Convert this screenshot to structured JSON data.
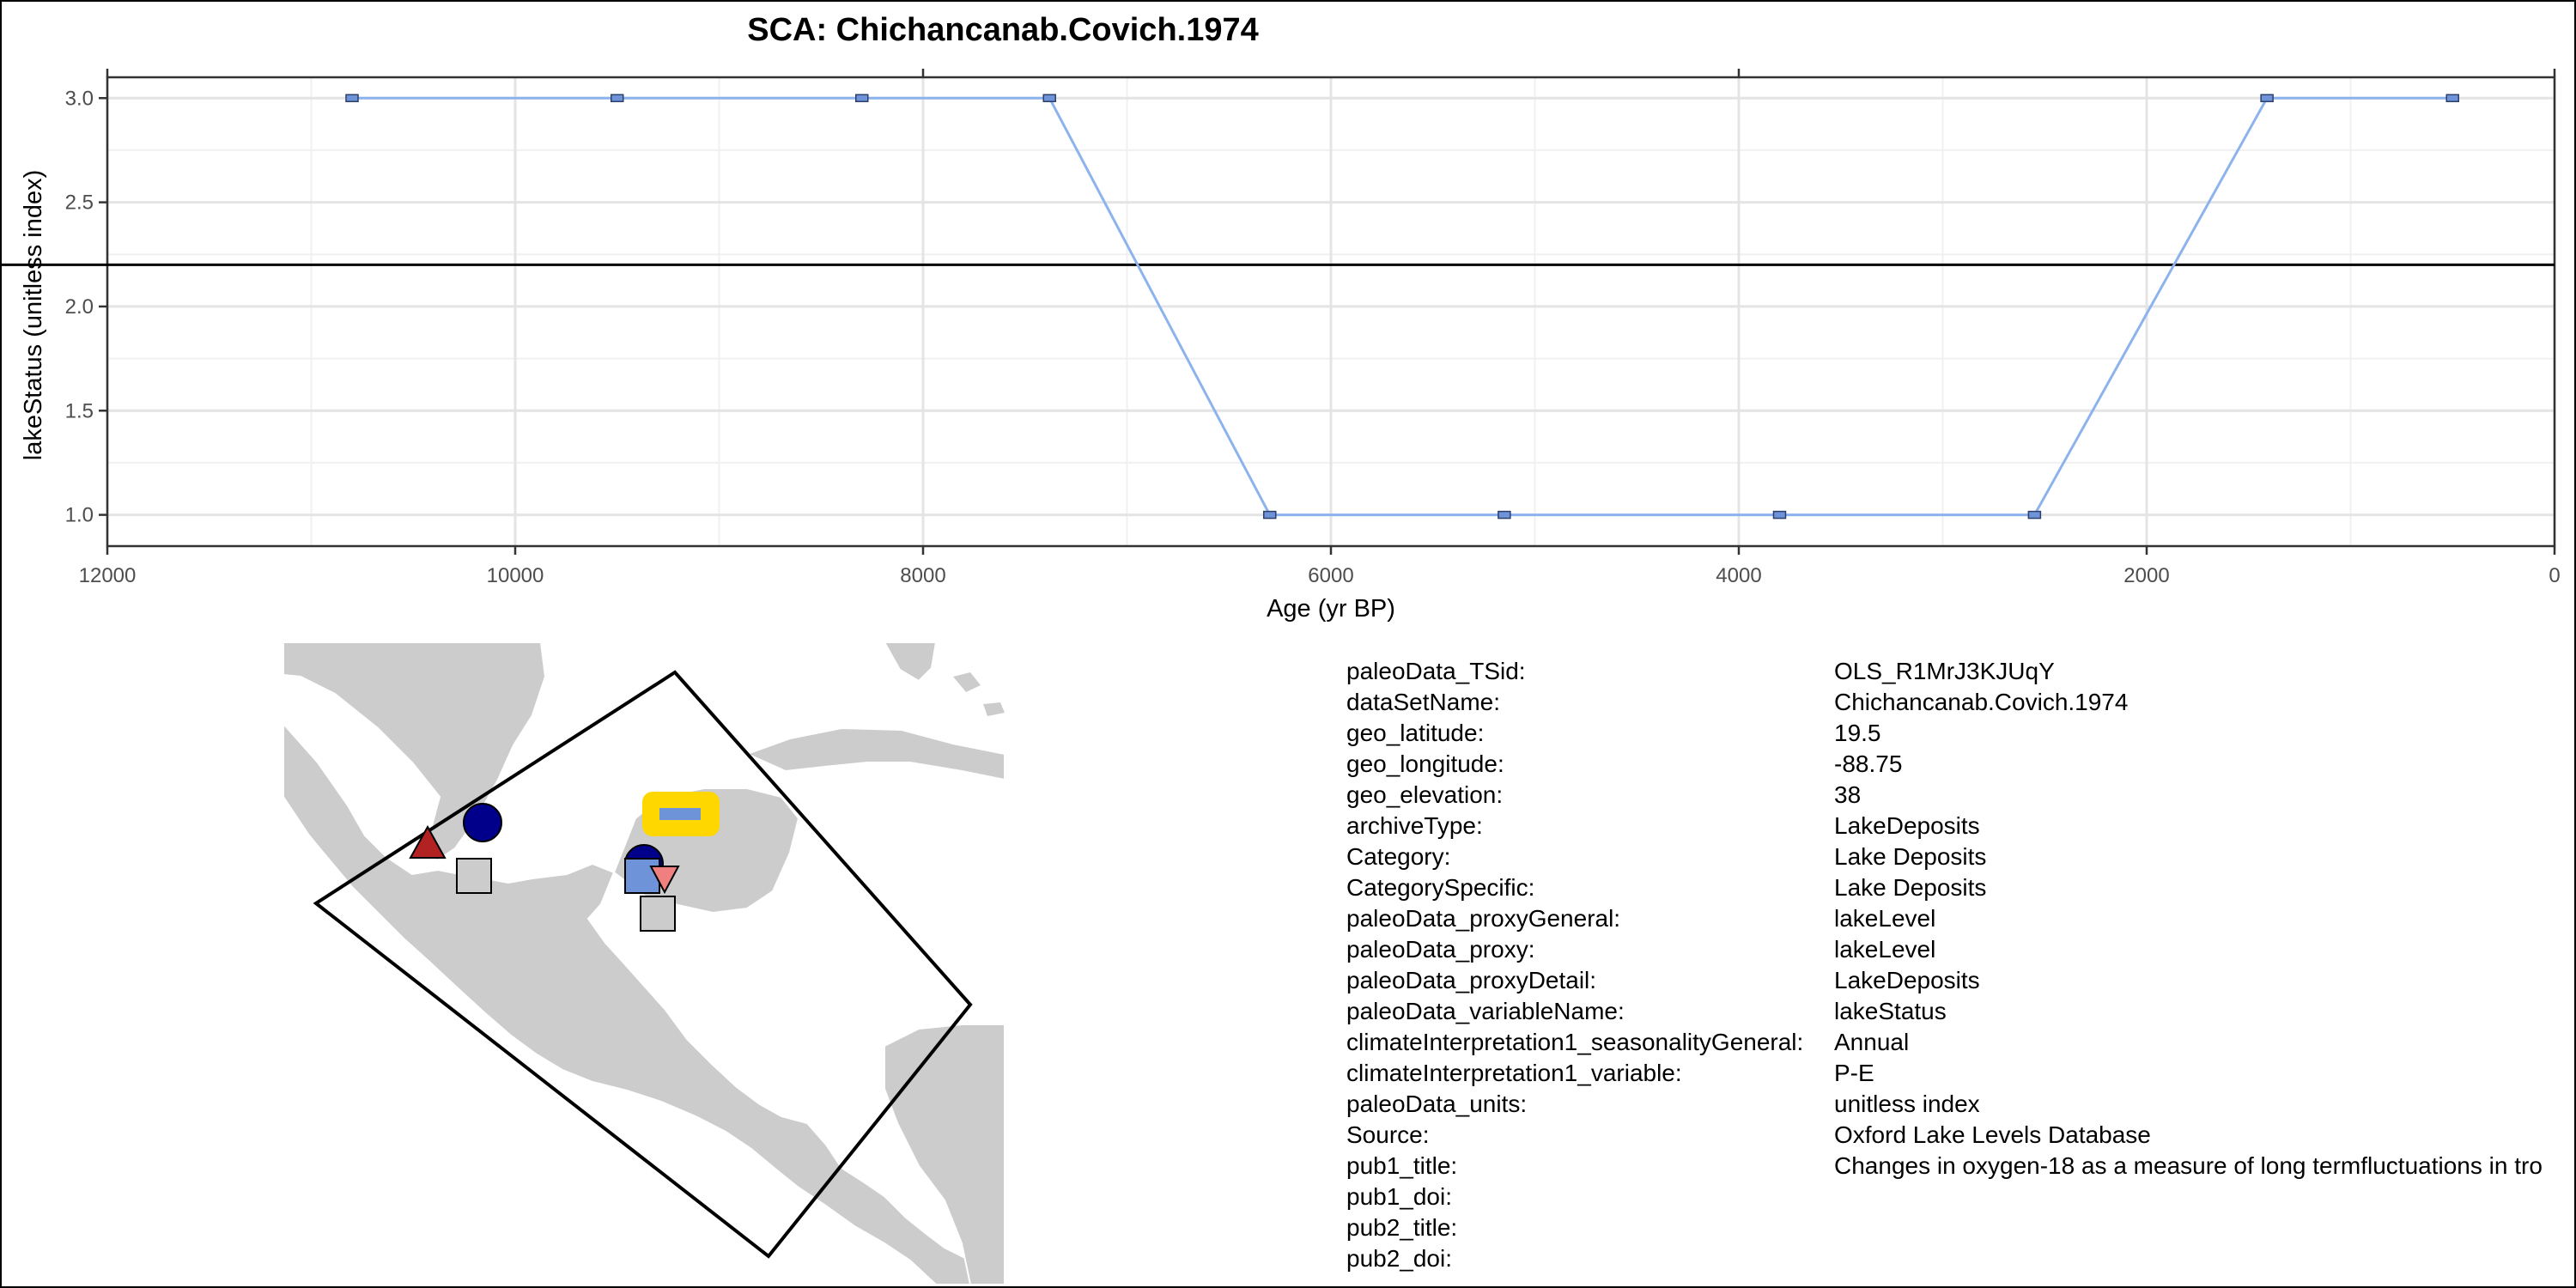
{
  "chart_data": {
    "type": "line",
    "title": "SCA: Chichancanab.Covich.1974",
    "xlabel": "Age (yr BP)",
    "ylabel": "lakeStatus (unitless index)",
    "x_reversed": true,
    "y_reversed": true,
    "xlim": [
      12000,
      0
    ],
    "ylim": [
      3.1,
      0.85
    ],
    "x_ticks": [
      12000,
      10000,
      8000,
      6000,
      4000,
      2000,
      0
    ],
    "x_tick_labels": [
      "12000",
      "10000",
      "8000",
      "6000",
      "4000",
      "2000",
      "0"
    ],
    "y_ticks": [
      1.0,
      1.5,
      2.0,
      2.5,
      3.0
    ],
    "y_tick_labels": [
      "1.0",
      "1.5",
      "2.0",
      "2.5",
      "3.0"
    ],
    "grid": true,
    "reference_line_y": 2.2,
    "line_color": "#8db3ee",
    "marker_color": "#6f93d8",
    "series": [
      {
        "x": [
          10800,
          9500,
          8300,
          7380,
          6300,
          5150,
          3800,
          2550,
          1410,
          500
        ],
        "y": [
          3,
          3,
          3,
          3,
          1,
          1,
          1,
          1,
          3,
          3
        ]
      }
    ]
  },
  "info": {
    "rows": [
      {
        "key": "paleoData_TSid:",
        "value": "OLS_R1MrJ3KJUqY"
      },
      {
        "key": "dataSetName:",
        "value": "Chichancanab.Covich.1974"
      },
      {
        "key": "geo_latitude:",
        "value": "19.5"
      },
      {
        "key": "geo_longitude:",
        "value": "-88.75"
      },
      {
        "key": "geo_elevation:",
        "value": "38"
      },
      {
        "key": "archiveType:",
        "value": "LakeDeposits"
      },
      {
        "key": "Category:",
        "value": "Lake Deposits"
      },
      {
        "key": "CategorySpecific:",
        "value": "Lake Deposits"
      },
      {
        "key": "paleoData_proxyGeneral:",
        "value": "lakeLevel"
      },
      {
        "key": "paleoData_proxy:",
        "value": "lakeLevel"
      },
      {
        "key": "paleoData_proxyDetail:",
        "value": "LakeDeposits"
      },
      {
        "key": "paleoData_variableName:",
        "value": "lakeStatus"
      },
      {
        "key": "climateInterpretation1_seasonalityGeneral:",
        "value": "Annual"
      },
      {
        "key": "climateInterpretation1_variable:",
        "value": "P-E"
      },
      {
        "key": "paleoData_units:",
        "value": "unitless index"
      },
      {
        "key": "Source:",
        "value": "Oxford Lake Levels Database"
      },
      {
        "key": "pub1_title:",
        "value": "Changes in oxygen-18 as a measure of long termfluctuations in tro"
      },
      {
        "key": "pub1_doi:",
        "value": ""
      },
      {
        "key": "pub2_title:",
        "value": ""
      },
      {
        "key": "pub2_doi:",
        "value": ""
      }
    ]
  },
  "map": {
    "land_color": "#cccccc",
    "border_color": "#ffffff",
    "highlight_color": "#ffd700",
    "markers": [
      {
        "shape": "triangle-up",
        "color": "#b22222"
      },
      {
        "shape": "circle",
        "color": "#00008b"
      },
      {
        "shape": "square",
        "color": "#cccccc"
      },
      {
        "shape": "circle",
        "color": "#00008b"
      },
      {
        "shape": "square",
        "color": "#6f93d8"
      },
      {
        "shape": "triangle-down",
        "color": "#f08080"
      },
      {
        "shape": "square",
        "color": "#cccccc"
      },
      {
        "shape": "rect",
        "color": "#6f93d8"
      }
    ]
  }
}
